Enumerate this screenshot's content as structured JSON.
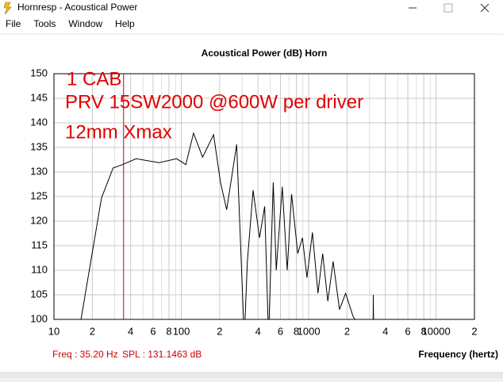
{
  "window": {
    "title": "Hornresp - Acoustical Power"
  },
  "menu": [
    "File",
    "Tools",
    "Window",
    "Help"
  ],
  "status": {
    "freq": "Freq : 35.20 Hz",
    "spl": "SPL : 131.1463 dB"
  },
  "chart_data": {
    "type": "line",
    "title": "Acoustical Power (dB)   Horn",
    "x_label": "Frequency (hertz)",
    "annotations": [
      "1 CAB",
      "PRV 15SW2000 @600W per driver",
      "12mm Xmax"
    ],
    "log_x": true,
    "grid": true,
    "xlim": [
      10,
      20000
    ],
    "ylim": [
      100,
      150
    ],
    "xticks": [
      10,
      {
        "value": 20,
        "label": "2"
      },
      {
        "value": 40,
        "label": "4"
      },
      {
        "value": 60,
        "label": "6"
      },
      {
        "value": 80,
        "label": "8"
      },
      100,
      {
        "value": 200,
        "label": "2"
      },
      {
        "value": 400,
        "label": "4"
      },
      {
        "value": 600,
        "label": "6"
      },
      {
        "value": 800,
        "label": "8"
      },
      1000,
      {
        "value": 2000,
        "label": "2"
      },
      {
        "value": 4000,
        "label": "4"
      },
      {
        "value": 6000,
        "label": "6"
      },
      {
        "value": 8000,
        "label": "8"
      },
      10000,
      {
        "value": 20000,
        "label": "2"
      }
    ],
    "xminorticks": [
      30,
      50,
      70,
      90,
      300,
      500,
      700,
      900,
      3000,
      5000,
      7000,
      9000
    ],
    "yticks": [
      100,
      105,
      110,
      115,
      120,
      125,
      130,
      135,
      140,
      145,
      150
    ],
    "cursor_x": 35.2,
    "cursor_color": "#cc0000",
    "series": [
      {
        "name": "Horn",
        "color": "#000000",
        "x": [
          16.3,
          23.6,
          29.1,
          34.5,
          44.2,
          66.8,
          92,
          108.4,
          124.6,
          147,
          179,
          203,
          227,
          272,
          312,
          330,
          366,
          411,
          451,
          484,
          527,
          556,
          620,
          678,
          733,
          820,
          893,
          969,
          1069,
          1183,
          1286,
          1413,
          1555,
          1743,
          1947,
          2234,
          2650,
          3000,
          3206,
          3215,
          3230
        ],
        "values": [
          100,
          124.7,
          130.8,
          131.5,
          132.7,
          131.9,
          132.7,
          131.5,
          137.9,
          133,
          137.6,
          127.9,
          122.3,
          135.6,
          96,
          111.8,
          126.3,
          116.6,
          123,
          96,
          127.9,
          110,
          127,
          110,
          125.5,
          113.4,
          116.6,
          108.5,
          117.7,
          105.3,
          113.4,
          103.7,
          111.8,
          102,
          105.3,
          100.5,
          98,
          null,
          98,
          105,
          98
        ]
      }
    ]
  }
}
